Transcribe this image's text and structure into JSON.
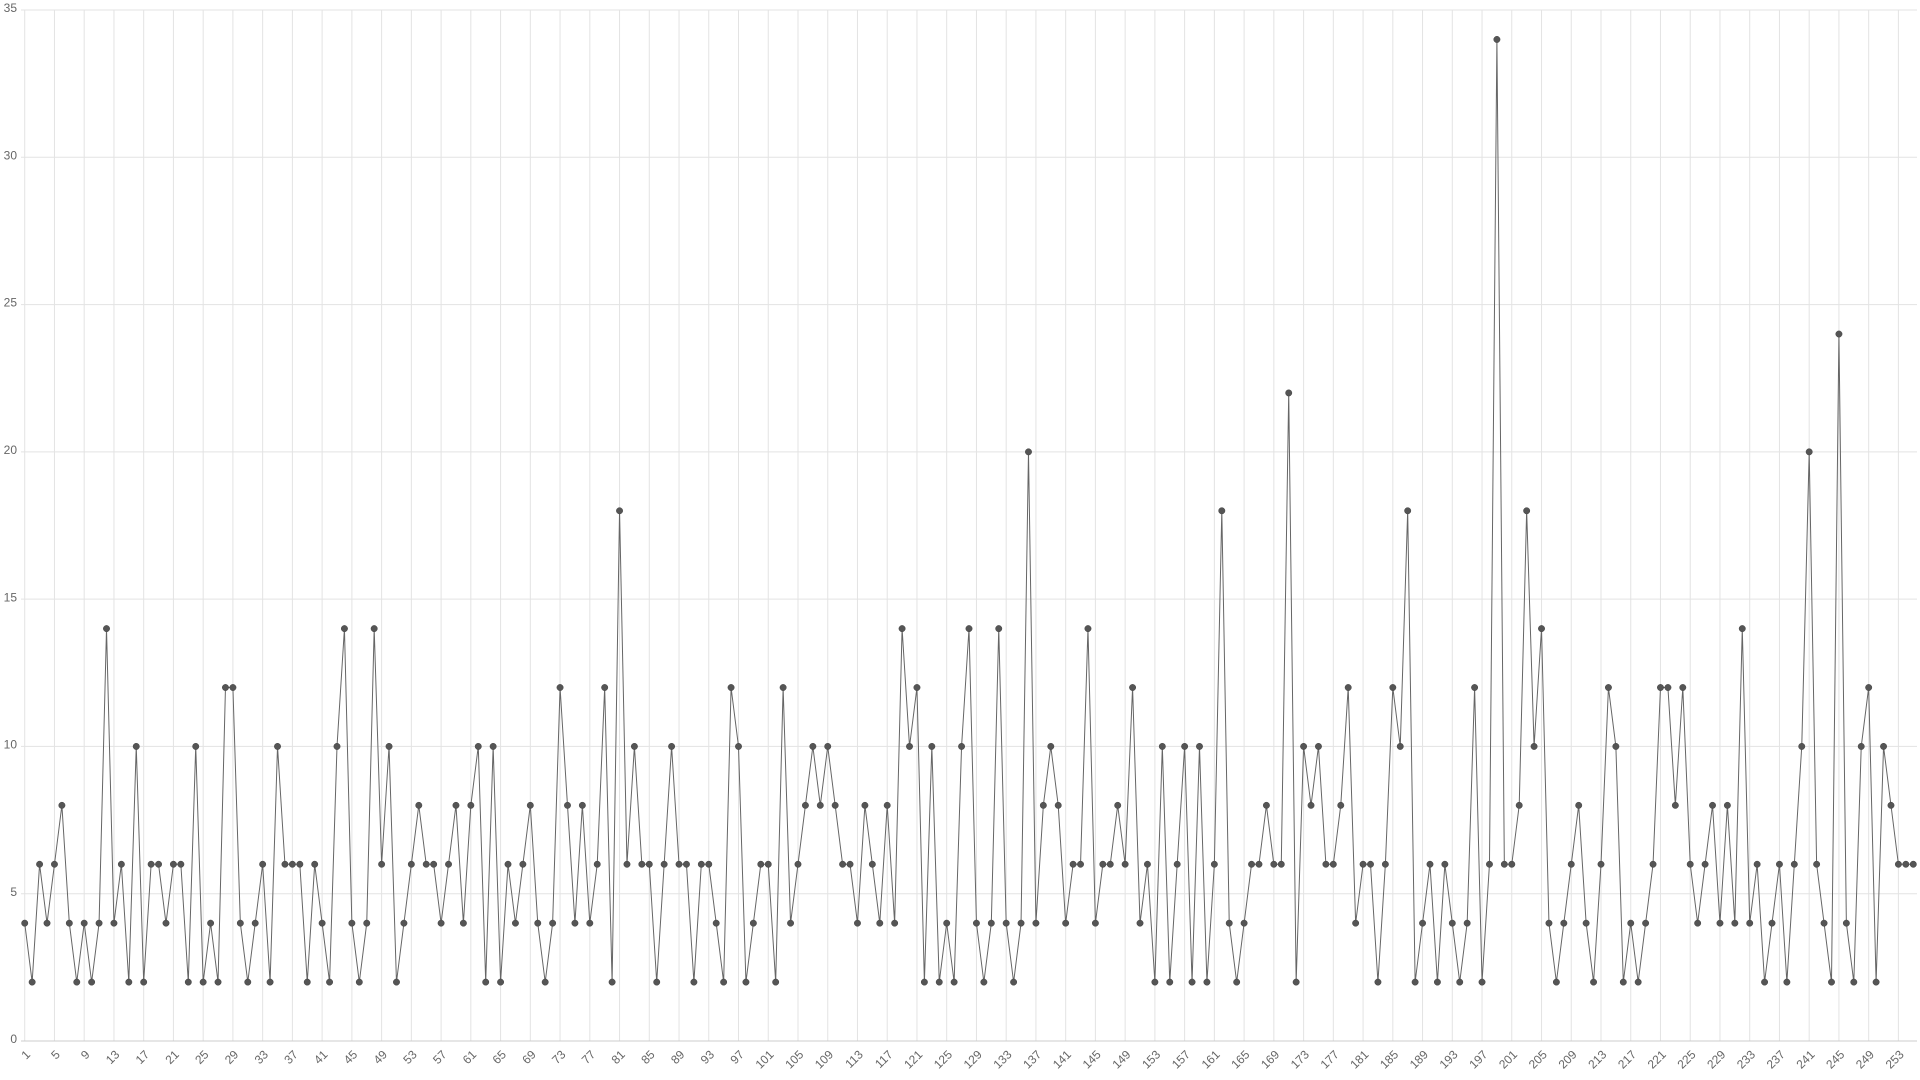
{
  "chart_data": {
    "type": "line",
    "categories": [
      "1",
      null,
      null,
      null,
      "5",
      null,
      null,
      null,
      "9",
      null,
      null,
      null,
      "13",
      null,
      null,
      null,
      "17",
      null,
      null,
      null,
      "21",
      null,
      null,
      null,
      "25",
      null,
      null,
      null,
      "29",
      null,
      null,
      null,
      "33",
      null,
      null,
      null,
      "37",
      null,
      null,
      null,
      "41",
      null,
      null,
      null,
      "45",
      null,
      null,
      null,
      "49",
      null,
      null,
      null,
      "53",
      null,
      null,
      null,
      "57",
      null,
      null,
      null,
      "61",
      null,
      null,
      null,
      "65",
      null,
      null,
      null,
      "69",
      null,
      null,
      null,
      "73",
      null,
      null,
      null,
      "77",
      null,
      null,
      null,
      "81",
      null,
      null,
      null,
      "85",
      null,
      null,
      null,
      "89",
      null,
      null,
      null,
      "93",
      null,
      null,
      null,
      "97",
      null,
      null,
      null,
      "101",
      null,
      null,
      null,
      "105",
      null,
      null,
      null,
      "109",
      null,
      null,
      null,
      "113",
      null,
      null,
      null,
      "117",
      null,
      null,
      null,
      "121",
      null,
      null,
      null,
      "125",
      null,
      null,
      null,
      "129",
      null,
      null,
      null,
      "133",
      null,
      null,
      null,
      "137",
      null,
      null,
      null,
      "141",
      null,
      null,
      null,
      "145",
      null,
      null,
      null,
      "149",
      null,
      null,
      null,
      "153",
      null,
      null,
      null,
      "157",
      null,
      null,
      null,
      "161",
      null,
      null,
      null,
      "165",
      null,
      null,
      null,
      "169",
      null,
      null,
      null,
      "173",
      null,
      null,
      null,
      "177",
      null,
      null,
      null,
      "181",
      null,
      null,
      null,
      "185",
      null,
      null,
      null,
      "189",
      null,
      null,
      null,
      "193",
      null,
      null,
      null,
      "197",
      null,
      null,
      null,
      "201",
      null,
      null,
      null,
      "205",
      null,
      null,
      null,
      "209",
      null,
      null,
      null,
      "213",
      null,
      null,
      null,
      "217",
      null,
      null,
      null,
      "221",
      null,
      null,
      null,
      "225",
      null,
      null,
      null,
      "229",
      null,
      null,
      null,
      "233",
      null,
      null,
      null,
      "237",
      null,
      null,
      null,
      "241",
      null,
      null,
      null,
      "245",
      null,
      null,
      null,
      "249",
      null,
      null,
      null,
      "253",
      null,
      null
    ],
    "values": [
      4,
      2,
      6,
      4,
      6,
      8,
      4,
      2,
      4,
      2,
      4,
      14,
      4,
      6,
      2,
      10,
      2,
      6,
      6,
      4,
      6,
      6,
      2,
      10,
      2,
      4,
      2,
      12,
      12,
      4,
      2,
      4,
      6,
      2,
      10,
      6,
      6,
      6,
      2,
      6,
      4,
      2,
      10,
      14,
      4,
      2,
      4,
      14,
      6,
      10,
      2,
      4,
      6,
      8,
      6,
      6,
      4,
      6,
      8,
      4,
      8,
      10,
      2,
      10,
      2,
      6,
      4,
      6,
      8,
      4,
      2,
      4,
      12,
      8,
      4,
      8,
      4,
      6,
      12,
      2,
      18,
      6,
      10,
      6,
      6,
      2,
      6,
      10,
      6,
      6,
      2,
      6,
      6,
      4,
      2,
      12,
      10,
      2,
      4,
      6,
      6,
      2,
      12,
      4,
      6,
      8,
      10,
      8,
      10,
      8,
      6,
      6,
      4,
      8,
      6,
      4,
      8,
      4,
      14,
      10,
      12,
      2,
      10,
      2,
      4,
      2,
      10,
      14,
      4,
      2,
      4,
      14,
      4,
      2,
      4,
      20,
      4,
      8,
      10,
      8,
      4,
      6,
      6,
      14,
      4,
      6,
      6,
      8,
      6,
      12,
      4,
      6,
      2,
      10,
      2,
      6,
      10,
      2,
      10,
      2,
      6,
      18,
      4,
      2,
      4,
      6,
      6,
      8,
      6,
      6,
      22,
      2,
      10,
      8,
      10,
      6,
      6,
      8,
      12,
      4,
      6,
      6,
      2,
      6,
      12,
      10,
      18,
      2,
      4,
      6,
      2,
      6,
      4,
      2,
      4,
      12,
      2,
      6,
      34,
      6,
      6,
      8,
      18,
      10,
      14,
      4,
      2,
      4,
      6,
      8,
      4,
      2,
      6,
      12,
      10,
      2,
      4,
      2,
      4,
      6,
      12,
      12,
      8,
      12,
      6,
      4,
      6,
      8,
      4,
      8,
      4,
      14,
      4,
      6,
      2,
      4,
      6,
      2,
      6,
      10,
      20,
      6,
      4,
      2,
      24,
      4,
      2,
      10,
      12,
      2,
      10,
      8,
      6,
      6,
      6
    ],
    "color": "#666666",
    "ylim": [
      0,
      35
    ],
    "yticks": [
      0,
      5,
      10,
      15,
      20,
      25,
      30,
      35
    ],
    "grid": true
  }
}
